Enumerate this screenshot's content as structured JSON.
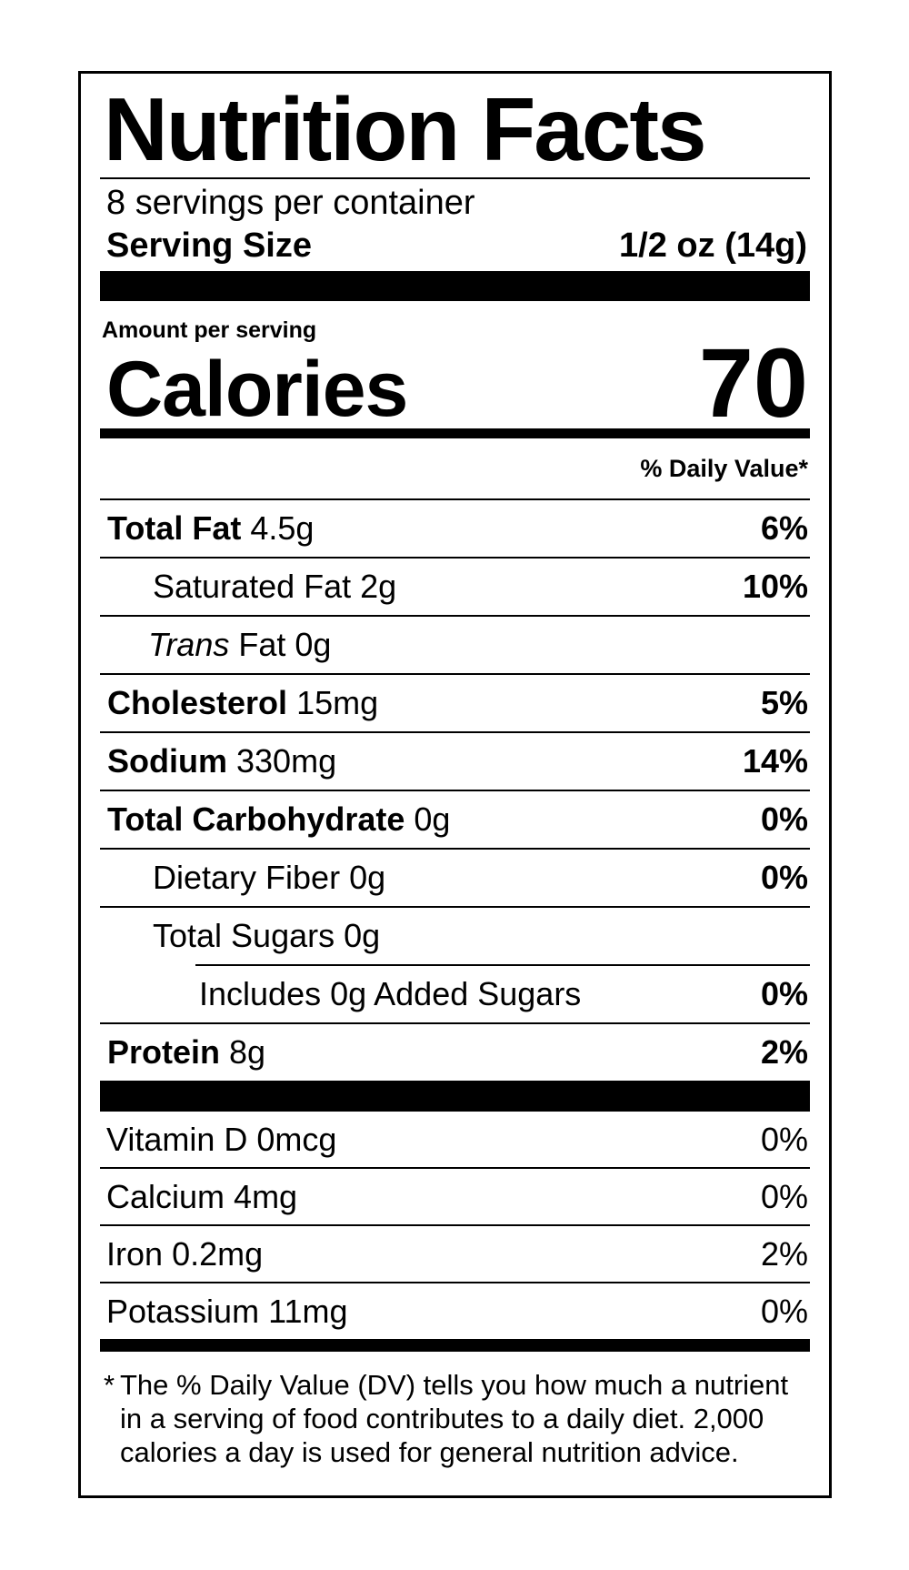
{
  "title": "Nutrition Facts",
  "servings_per_container": "8 servings per container",
  "serving_size": {
    "label": "Serving Size",
    "value": "1/2 oz (14g)"
  },
  "amount_per_serving": "Amount per serving",
  "calories": {
    "label": "Calories",
    "value": "70"
  },
  "daily_value_header": "% Daily Value*",
  "nutrients": [
    {
      "name": "Total Fat",
      "amount": "4.5g",
      "dv": "6%",
      "sub": [
        {
          "name": "Saturated Fat",
          "amount": "2g",
          "dv": "10%"
        },
        {
          "prefix": "Trans",
          "name": "Fat",
          "amount": "0g"
        }
      ]
    },
    {
      "name": "Cholesterol",
      "amount": "15mg",
      "dv": "5%"
    },
    {
      "name": "Sodium",
      "amount": "330mg",
      "dv": "14%"
    },
    {
      "name": "Total Carbohydrate",
      "amount": "0g",
      "dv": "0%",
      "sub": [
        {
          "name": "Dietary Fiber",
          "amount": "0g",
          "dv": "0%"
        },
        {
          "name": "Total Sugars",
          "amount": "0g",
          "sub": [
            {
              "name": "Includes 0g Added Sugars",
              "dv": "0%"
            }
          ]
        }
      ]
    },
    {
      "name": "Protein",
      "amount": "8g",
      "dv": "2%"
    }
  ],
  "vitamins": [
    {
      "name": "Vitamin D",
      "amount": "0mcg",
      "dv": "0%"
    },
    {
      "name": "Calcium",
      "amount": "4mg",
      "dv": "0%"
    },
    {
      "name": "Iron",
      "amount": "0.2mg",
      "dv": "2%"
    },
    {
      "name": "Potassium",
      "amount": "11mg",
      "dv": "0%"
    }
  ],
  "footnote": {
    "marker": "*",
    "text": "The % Daily Value (DV) tells you how much a nutrient in a serving of food contributes to a daily diet. 2,000 calories a day is used for general nutrition advice."
  }
}
